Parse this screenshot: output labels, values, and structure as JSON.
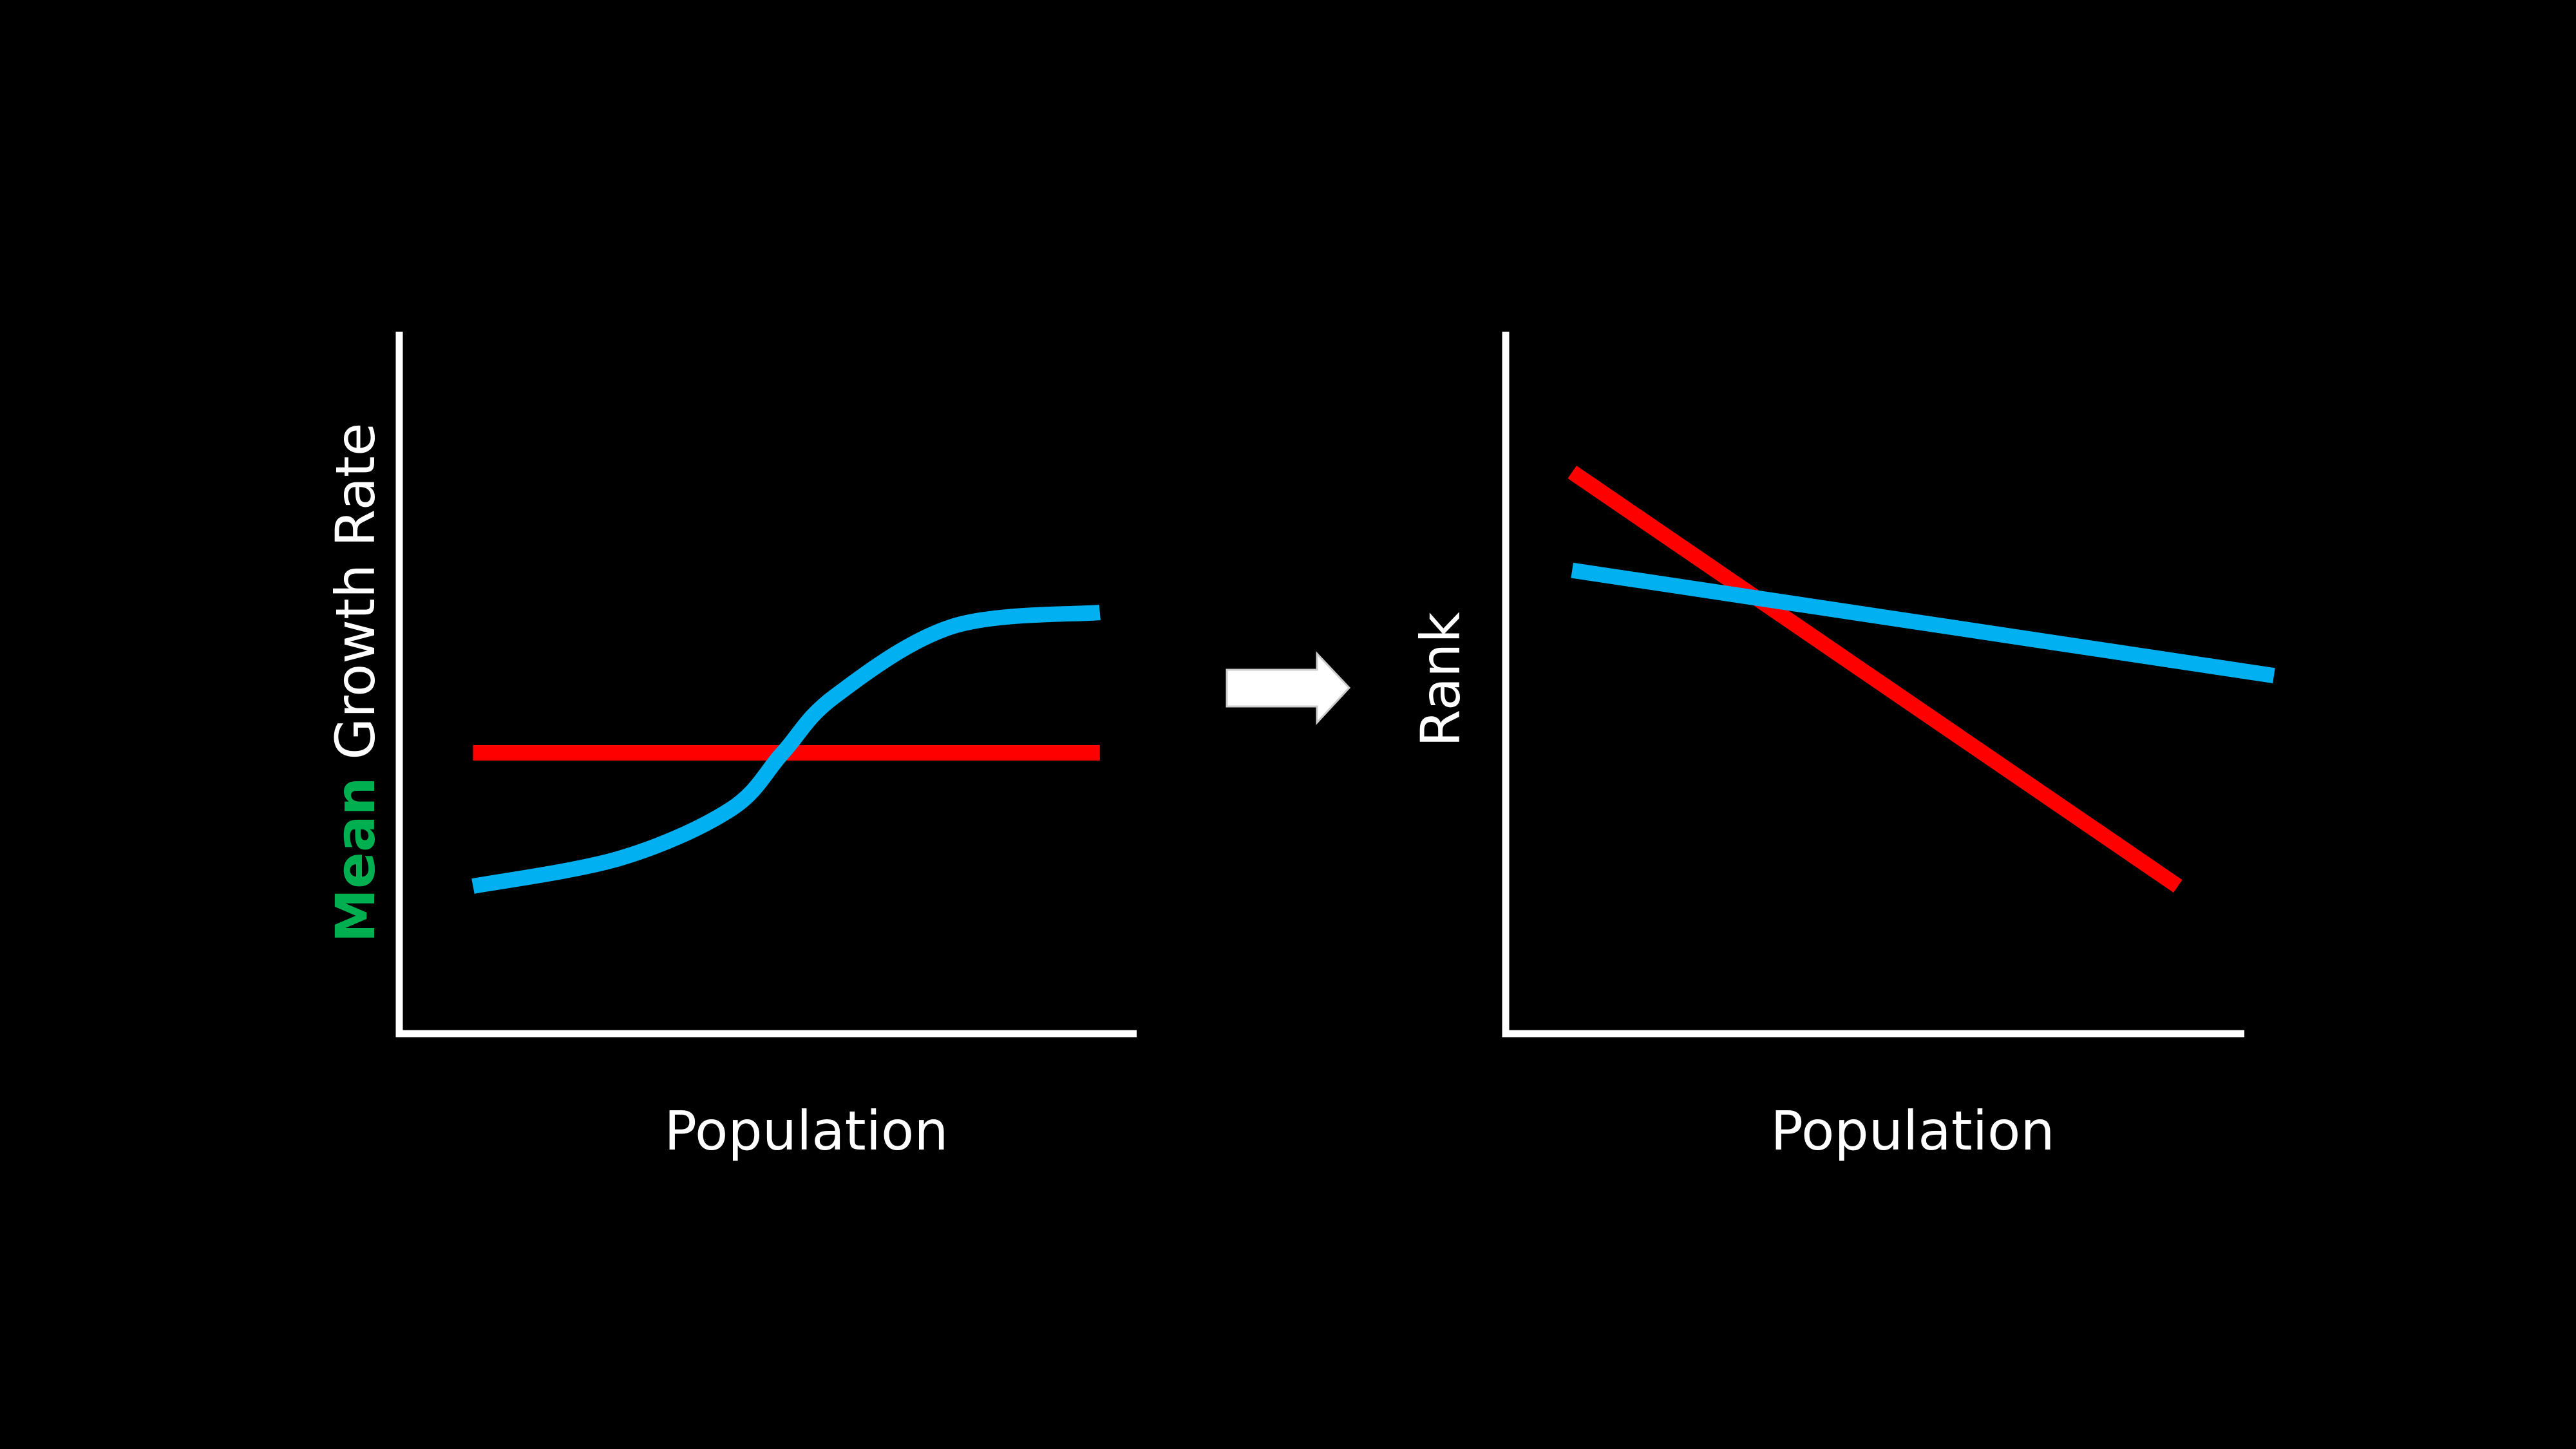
{
  "colors": {
    "background": "#000000",
    "axis": "#ffffff",
    "text": "#ffffff",
    "emphasis": "#00b050",
    "series_red": "#ff0000",
    "series_blue": "#00b0f0",
    "arrow_fill": "#ffffff"
  },
  "transition": {
    "icon": "right-arrow-icon"
  },
  "chart_data": [
    {
      "type": "line",
      "xlabel": "Population",
      "ylabel": {
        "emphasis": "Mean",
        "rest": " Growth Rate"
      },
      "grid": false,
      "legend": "none",
      "xlim": [
        0,
        100
      ],
      "ylim": [
        0,
        100
      ],
      "series": [
        {
          "color": "#ff0000",
          "shape": "flat",
          "points": [
            [
              10,
              40
            ],
            [
              95,
              40
            ]
          ]
        },
        {
          "color": "#00b0f0",
          "shape": "s-curve",
          "points": [
            [
              10,
              21
            ],
            [
              30,
              25
            ],
            [
              45,
              32
            ],
            [
              52,
              40
            ],
            [
              59,
              48
            ],
            [
              75,
              58
            ],
            [
              95,
              60
            ]
          ]
        }
      ]
    },
    {
      "type": "line",
      "xlabel": "Population",
      "ylabel": {
        "emphasis": "",
        "rest": "Rank"
      },
      "grid": false,
      "legend": "none",
      "xlim": [
        0,
        100
      ],
      "ylim": [
        0,
        100
      ],
      "series": [
        {
          "color": "#ff0000",
          "shape": "straight",
          "points": [
            [
              9,
              80
            ],
            [
              91,
              21
            ]
          ]
        },
        {
          "color": "#00b0f0",
          "shape": "straight",
          "points": [
            [
              9,
              66
            ],
            [
              104,
              51
            ]
          ]
        }
      ]
    }
  ]
}
